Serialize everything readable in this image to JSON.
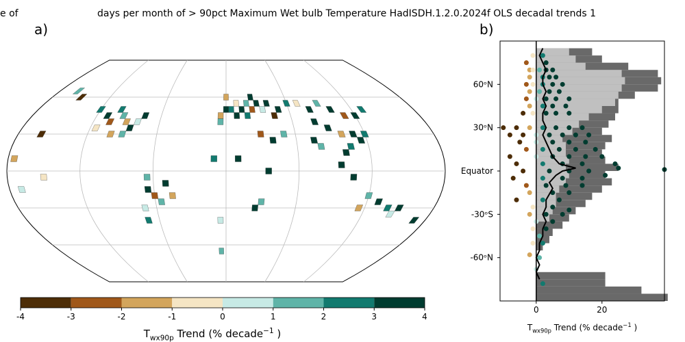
{
  "chart_data": [
    {
      "type": "map",
      "title": "days per month of > 90pct Maximum Wet bulb Temperature HadISDH.1.2.0.2024f OLS decadal trends 1",
      "title_clipped": "e of",
      "panel": "a)",
      "cells": [
        [
          -100,
          50,
          2.5
        ],
        [
          -95,
          45,
          1.5
        ],
        [
          -90,
          40,
          -1.5
        ],
        [
          -85,
          35,
          3.5
        ],
        [
          -80,
          40,
          0.5
        ],
        [
          -105,
          40,
          -2.5
        ],
        [
          -110,
          45,
          3.5
        ],
        [
          -115,
          35,
          -0.5
        ],
        [
          -120,
          50,
          2.5
        ],
        [
          -75,
          45,
          3.5
        ],
        [
          -90,
          30,
          1.5
        ],
        [
          -100,
          30,
          -1.5
        ],
        [
          -150,
          60,
          -3.5
        ],
        [
          -160,
          65,
          1.5
        ],
        [
          -65,
          -15,
          3.5
        ],
        [
          -60,
          -20,
          -2.5
        ],
        [
          -55,
          -25,
          1.5
        ],
        [
          -70,
          -30,
          0.5
        ],
        [
          -50,
          -10,
          3.5
        ],
        [
          -45,
          -20,
          -1.5
        ],
        [
          -70,
          -40,
          2.5
        ],
        [
          -65,
          -5,
          1.5
        ],
        [
          -5,
          45,
          -1.5
        ],
        [
          0,
          50,
          3.5
        ],
        [
          5,
          50,
          2.5
        ],
        [
          10,
          55,
          -0.5
        ],
        [
          15,
          50,
          3.5
        ],
        [
          20,
          55,
          1.5
        ],
        [
          25,
          50,
          -2.5
        ],
        [
          30,
          55,
          3.5
        ],
        [
          35,
          50,
          0.5
        ],
        [
          40,
          55,
          3.5
        ],
        [
          20,
          45,
          2.5
        ],
        [
          10,
          45,
          3.5
        ],
        [
          -5,
          40,
          1.5
        ],
        [
          0,
          60,
          -1.5
        ],
        [
          25,
          60,
          3.5
        ],
        [
          45,
          45,
          -3.5
        ],
        [
          50,
          50,
          3.5
        ],
        [
          60,
          55,
          2.5
        ],
        [
          70,
          55,
          -0.5
        ],
        [
          80,
          50,
          3.5
        ],
        [
          90,
          55,
          1.5
        ],
        [
          100,
          50,
          3.5
        ],
        [
          110,
          45,
          -2.5
        ],
        [
          120,
          45,
          3.5
        ],
        [
          130,
          50,
          2.5
        ],
        [
          80,
          40,
          3.5
        ],
        [
          90,
          35,
          3.5
        ],
        [
          100,
          30,
          -1.5
        ],
        [
          110,
          30,
          3.5
        ],
        [
          120,
          30,
          2.5
        ],
        [
          75,
          25,
          3.5
        ],
        [
          80,
          20,
          1.5
        ],
        [
          100,
          15,
          3.5
        ],
        [
          105,
          20,
          2.5
        ],
        [
          115,
          25,
          3.5
        ],
        [
          30,
          30,
          -2.5
        ],
        [
          40,
          25,
          3.5
        ],
        [
          50,
          30,
          1.5
        ],
        [
          10,
          10,
          3.5
        ],
        [
          -10,
          10,
          2.5
        ],
        [
          35,
          0,
          3.5
        ],
        [
          30,
          -25,
          1.5
        ],
        [
          25,
          -30,
          3.5
        ],
        [
          120,
          -20,
          1.5
        ],
        [
          130,
          -25,
          3.5
        ],
        [
          140,
          -30,
          2.5
        ],
        [
          145,
          -35,
          0.5
        ],
        [
          150,
          -30,
          3.5
        ],
        [
          115,
          -30,
          -1.5
        ],
        [
          -150,
          -5,
          -0.5
        ],
        [
          -170,
          -15,
          0.5
        ],
        [
          -160,
          30,
          -3.5
        ],
        [
          -175,
          10,
          -1.5
        ],
        [
          -5,
          -65,
          1.5
        ],
        [
          -5,
          -40,
          0.5
        ],
        [
          95,
          5,
          3.5
        ],
        [
          105,
          -5,
          3.5
        ],
        [
          170,
          -40,
          3.5
        ]
      ],
      "colorbar": {
        "ticks": [
          -4,
          -3,
          -2,
          -1,
          0,
          1,
          2,
          3,
          4
        ],
        "colors": [
          "#4d2d07",
          "#a0581a",
          "#d3a55c",
          "#f5e5c4",
          "#c7eae5",
          "#5fb4a8",
          "#127a6f",
          "#003c30"
        ],
        "label": {
          "main": "T",
          "sub": "wx90p",
          "rest": " Trend (% decade",
          "sup": "−1",
          "end": " )"
        }
      }
    },
    {
      "type": "profile",
      "panel": "b)",
      "xlim": [
        -11,
        39
      ],
      "ylim": [
        -90,
        90
      ],
      "xticks": [
        0,
        20
      ],
      "yticks": [
        {
          "value": 60,
          "label": "60ᵒN"
        },
        {
          "value": 30,
          "label": "30ᵒN"
        },
        {
          "value": 0,
          "label": "Equator"
        },
        {
          "value": -30,
          "label": "-30ᵒS"
        },
        {
          "value": -60,
          "label": "-60ᵒN"
        }
      ],
      "xlabel": {
        "main": "T",
        "sub": "wx90p",
        "rest": " Trend (% decade",
        "sup": "−1",
        "end": " )"
      },
      "bars": {
        "lat": [
          82.5,
          77.5,
          72.5,
          67.5,
          62.5,
          57.5,
          52.5,
          47.5,
          42.5,
          37.5,
          32.5,
          27.5,
          22.5,
          17.5,
          12.5,
          7.5,
          2.5,
          -2.5,
          -7.5,
          -12.5,
          -17.5,
          -22.5,
          -27.5,
          -32.5,
          -37.5,
          -42.5,
          -47.5,
          -52.5,
          -72.5,
          -77.5,
          -82.5,
          -87.5
        ],
        "dark": [
          17,
          20,
          28,
          37,
          38,
          37,
          30,
          25,
          25,
          24,
          22,
          20,
          23,
          21,
          20,
          21,
          25,
          21,
          23,
          20,
          17,
          15,
          12,
          10,
          8,
          5,
          4,
          2,
          21,
          21,
          32,
          40
        ],
        "light": [
          10,
          12,
          15,
          26,
          27,
          26,
          25,
          24,
          20,
          16,
          13,
          11,
          8,
          9,
          9,
          10,
          9,
          10,
          9,
          7,
          6,
          6,
          5,
          4,
          0,
          0,
          0,
          0,
          0,
          0,
          0,
          0
        ],
        "dark_color": "#696969",
        "light_color": "#c0c0c0"
      },
      "points": [
        [
          -1,
          80
        ],
        [
          2,
          80
        ],
        [
          -3,
          75
        ],
        [
          3,
          75
        ],
        [
          -2,
          70
        ],
        [
          -1,
          70
        ],
        [
          1,
          70
        ],
        [
          3,
          70
        ],
        [
          5,
          70
        ],
        [
          -2,
          65
        ],
        [
          2,
          65
        ],
        [
          4,
          65
        ],
        [
          6,
          65
        ],
        [
          -3,
          60
        ],
        [
          -1,
          60
        ],
        [
          2,
          60
        ],
        [
          5,
          60
        ],
        [
          8,
          60
        ],
        [
          -2,
          55
        ],
        [
          1,
          55
        ],
        [
          4,
          55
        ],
        [
          7,
          55
        ],
        [
          -3,
          50
        ],
        [
          0,
          50
        ],
        [
          3,
          50
        ],
        [
          6,
          50
        ],
        [
          10,
          50
        ],
        [
          -2,
          45
        ],
        [
          2,
          45
        ],
        [
          5,
          45
        ],
        [
          9,
          45
        ],
        [
          -4,
          40
        ],
        [
          -1,
          40
        ],
        [
          3,
          40
        ],
        [
          6,
          40
        ],
        [
          10,
          40
        ],
        [
          -10,
          30
        ],
        [
          -6,
          30
        ],
        [
          -2,
          30
        ],
        [
          2,
          30
        ],
        [
          6,
          30
        ],
        [
          10,
          30
        ],
        [
          14,
          30
        ],
        [
          -8,
          25
        ],
        [
          -4,
          25
        ],
        [
          0,
          25
        ],
        [
          4,
          25
        ],
        [
          8,
          25
        ],
        [
          12,
          25
        ],
        [
          16,
          25
        ],
        [
          -5,
          20
        ],
        [
          0,
          20
        ],
        [
          5,
          20
        ],
        [
          10,
          20
        ],
        [
          15,
          20
        ],
        [
          -3,
          15
        ],
        [
          2,
          15
        ],
        [
          7,
          15
        ],
        [
          12,
          15
        ],
        [
          18,
          15
        ],
        [
          -8,
          10
        ],
        [
          0,
          10
        ],
        [
          5,
          10
        ],
        [
          10,
          10
        ],
        [
          15,
          10
        ],
        [
          20,
          10
        ],
        [
          -6,
          5
        ],
        [
          2,
          5
        ],
        [
          8,
          5
        ],
        [
          14,
          5
        ],
        [
          24,
          5
        ],
        [
          -4,
          0
        ],
        [
          4,
          0
        ],
        [
          10,
          0
        ],
        [
          16,
          0
        ],
        [
          25,
          2
        ],
        [
          39,
          1
        ],
        [
          -7,
          -5
        ],
        [
          2,
          -5
        ],
        [
          8,
          -5
        ],
        [
          14,
          -5
        ],
        [
          21,
          -3
        ],
        [
          -3,
          -10
        ],
        [
          3,
          -10
        ],
        [
          9,
          -10
        ],
        [
          14,
          -10
        ],
        [
          -2,
          -15
        ],
        [
          5,
          -15
        ],
        [
          10,
          -15
        ],
        [
          -6,
          -20
        ],
        [
          2,
          -20
        ],
        [
          7,
          -20
        ],
        [
          -1,
          -25
        ],
        [
          5,
          -25
        ],
        [
          10,
          -27
        ],
        [
          -2,
          -30
        ],
        [
          3,
          -30
        ],
        [
          8,
          -30
        ],
        [
          0,
          -35
        ],
        [
          5,
          -35
        ],
        [
          -1,
          -40
        ],
        [
          3,
          -40
        ],
        [
          1,
          -45
        ],
        [
          -1,
          -50
        ],
        [
          2,
          -50
        ],
        [
          -2,
          -58
        ],
        [
          1,
          -60
        ],
        [
          0,
          -68
        ],
        [
          2,
          -78
        ]
      ],
      "median": {
        "x": [
          2,
          1,
          2,
          3,
          2,
          2,
          3,
          2,
          3,
          2,
          2,
          3,
          2,
          3,
          4,
          5,
          7,
          12,
          8,
          6,
          4,
          5,
          3,
          3,
          2,
          3,
          2,
          2,
          1,
          1,
          0,
          1,
          0,
          1
        ],
        "lat": [
          85,
          80,
          75,
          70,
          65,
          60,
          55,
          50,
          45,
          40,
          35,
          30,
          25,
          20,
          15,
          10,
          5,
          2,
          0,
          -3,
          -8,
          -12,
          -20,
          -25,
          -30,
          -35,
          -40,
          -45,
          -50,
          -55,
          -60,
          -65,
          -70,
          -75
        ]
      }
    }
  ]
}
